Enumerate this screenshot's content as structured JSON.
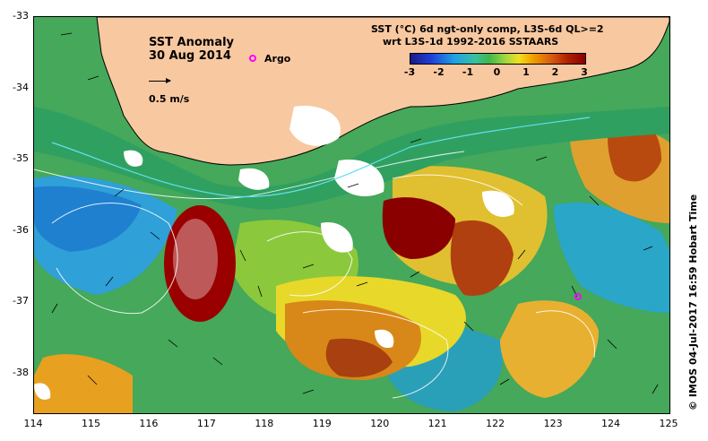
{
  "title": "SST Anomaly",
  "date": "30 Aug 2014",
  "legend": {
    "argo_label": "Argo",
    "argo_color": "#ff00ff",
    "scale_label": "0.5 m/s"
  },
  "colorbar": {
    "title_line1": "SST (°C) 6d ngt-only comp, L3S-6d QL>=2",
    "title_line2": "wrt L3S-1d 1992-2016 SSTAARS",
    "ticks": [
      "-3",
      "-2",
      "-1",
      "0",
      "1",
      "2",
      "3"
    ]
  },
  "axes": {
    "y_ticks": [
      "-33",
      "-34",
      "-35",
      "-36",
      "-37",
      "-38"
    ],
    "x_ticks": [
      "114",
      "115",
      "116",
      "117",
      "118",
      "119",
      "120",
      "121",
      "122",
      "123",
      "124",
      "125"
    ]
  },
  "credit": "© IMOS 04-Jul-2017 16:59 Hobart Time",
  "colors": {
    "land": "#f8c8a0",
    "warm": "#9a0000",
    "cool": "#1fa0e6",
    "neutral": "#3fb84a"
  }
}
